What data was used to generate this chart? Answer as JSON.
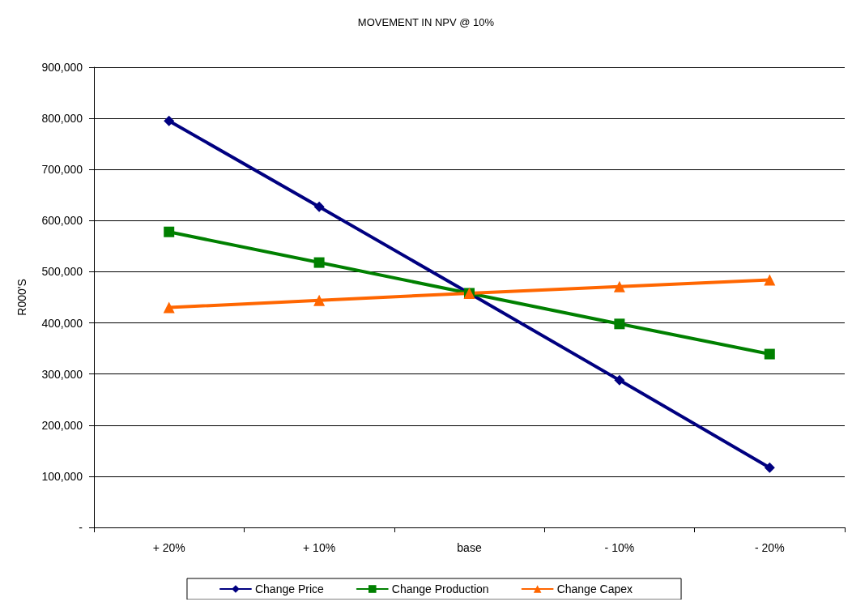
{
  "chart_data": {
    "type": "line",
    "title": "MOVEMENT IN NPV @ 10%",
    "ylabel": "R000'S",
    "categories": [
      "+ 20%",
      "+ 10%",
      "base",
      "- 10%",
      "- 20%"
    ],
    "series": [
      {
        "name": "Change Price",
        "color": "#000080",
        "marker": "diamond",
        "values": [
          795000,
          627000,
          458000,
          288000,
          117000
        ]
      },
      {
        "name": "Change Production",
        "color": "#008000",
        "marker": "square",
        "values": [
          578000,
          518000,
          458000,
          398000,
          339000
        ]
      },
      {
        "name": "Change Capex",
        "color": "#ff6600",
        "marker": "triangle",
        "values": [
          430000,
          444000,
          458000,
          471000,
          484000
        ]
      }
    ],
    "ylim": [
      0,
      900000
    ],
    "yticks": [
      {
        "value": 0,
        "label": "-"
      },
      {
        "value": 100000,
        "label": "100,000"
      },
      {
        "value": 200000,
        "label": "200,000"
      },
      {
        "value": 300000,
        "label": "300,000"
      },
      {
        "value": 400000,
        "label": "400,000"
      },
      {
        "value": 500000,
        "label": "500,000"
      },
      {
        "value": 600000,
        "label": "600,000"
      },
      {
        "value": 700000,
        "label": "700,000"
      },
      {
        "value": 800000,
        "label": "800,000"
      },
      {
        "value": 900000,
        "label": "900,000"
      }
    ],
    "grid": "y",
    "legend": "bottom",
    "line_style": "solid"
  }
}
